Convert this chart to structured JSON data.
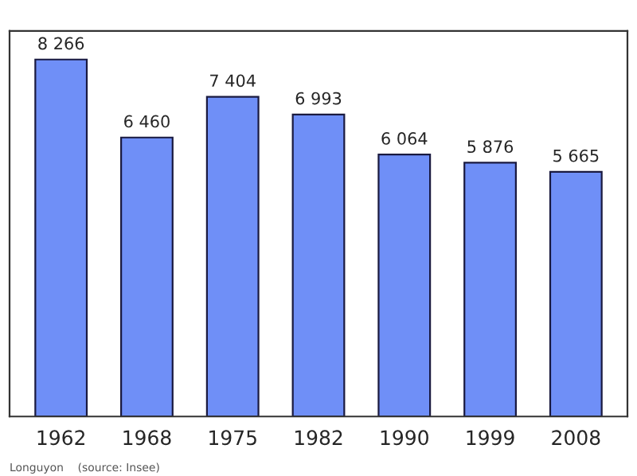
{
  "chart_data": {
    "type": "bar",
    "categories": [
      "1962",
      "1968",
      "1975",
      "1982",
      "1990",
      "1999",
      "2008"
    ],
    "values": [
      8266,
      6460,
      7404,
      6993,
      6064,
      5876,
      5665
    ],
    "value_labels": [
      "8 266",
      "6 460",
      "7 404",
      "6 993",
      "6 064",
      "5 876",
      "5 665"
    ],
    "color": "#6f8ff7",
    "annotations": [
      "Longuyon    (source: Insee)"
    ],
    "grid": false,
    "legend": false
  }
}
